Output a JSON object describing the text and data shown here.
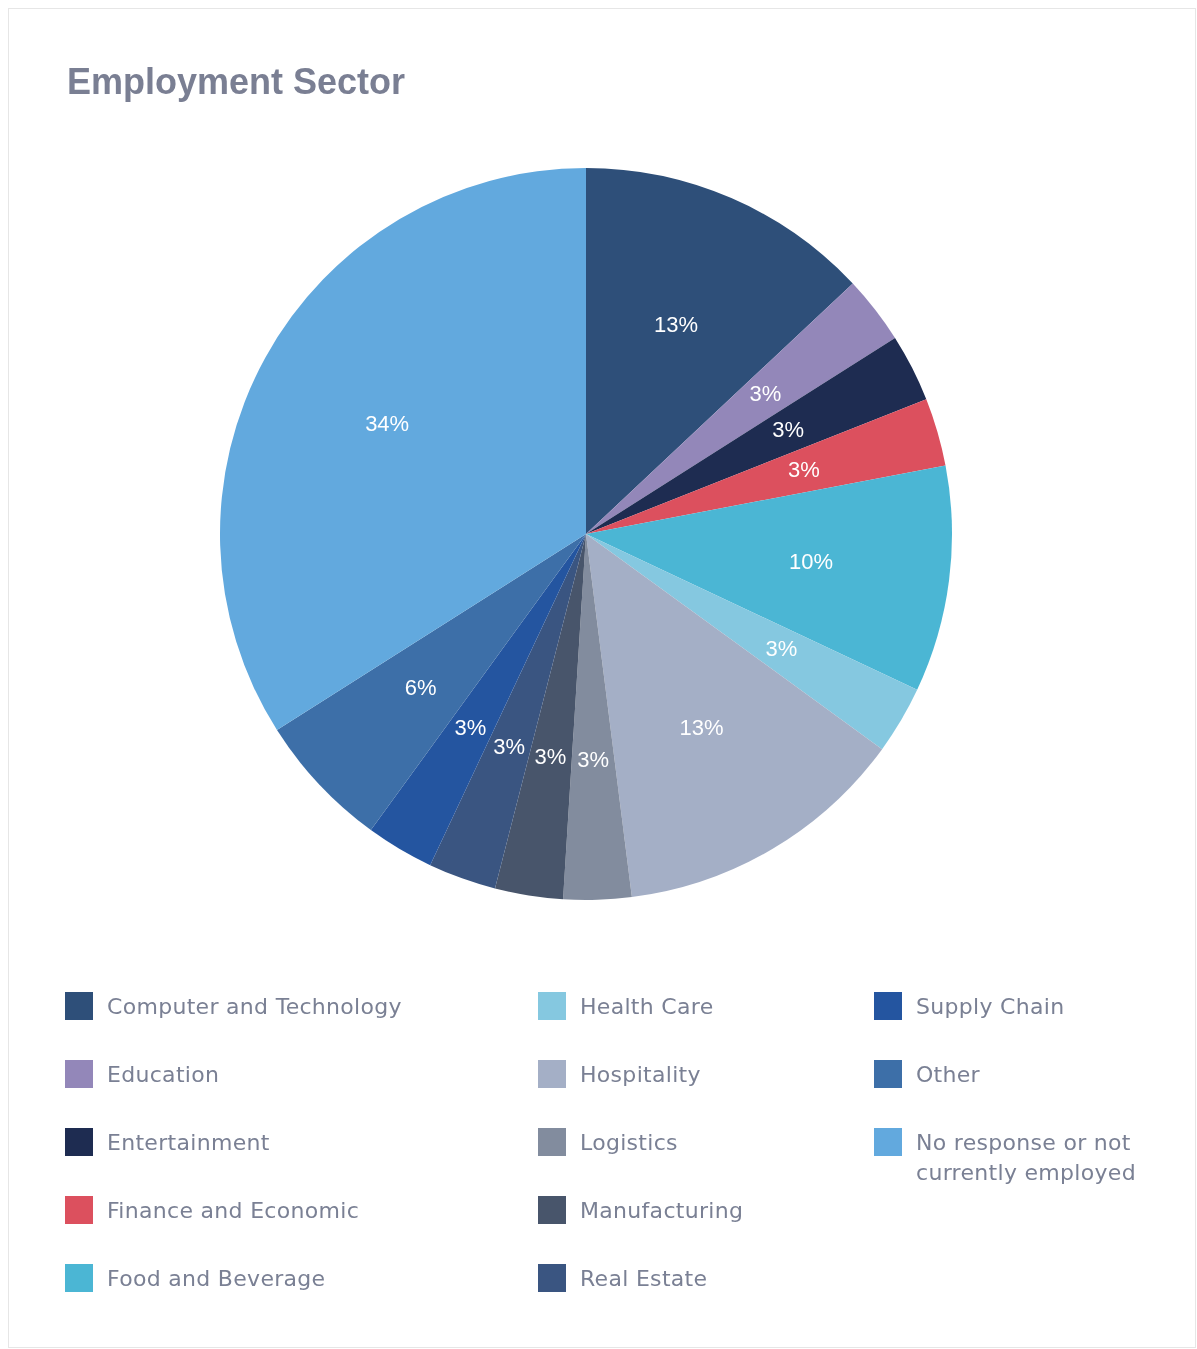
{
  "chart_data": {
    "type": "pie",
    "title": "Employment Sector",
    "categories": [
      "Computer and Technology",
      "Education",
      "Entertainment",
      "Finance and Economic",
      "Food and Beverage",
      "Health Care",
      "Hospitality",
      "Logistics",
      "Manufacturing",
      "Real Estate",
      "Supply Chain",
      "Other",
      "No response or not currently employed"
    ],
    "values": [
      13,
      3,
      3,
      3,
      10,
      3,
      13,
      3,
      3,
      3,
      3,
      6,
      34
    ],
    "colors": [
      "#2e4f79",
      "#9387b9",
      "#1e2c51",
      "#dc505e",
      "#4bb6d4",
      "#85c8e0",
      "#a4afc6",
      "#828c9e",
      "#48556b",
      "#3a5581",
      "#2455a0",
      "#3d6fa8",
      "#62a9de"
    ],
    "value_labels": [
      "13%",
      "3%",
      "3%",
      "3%",
      "10%",
      "3%",
      "13%",
      "3%",
      "3%",
      "3%",
      "3%",
      "6%",
      "34%"
    ],
    "legend": "bottom"
  }
}
